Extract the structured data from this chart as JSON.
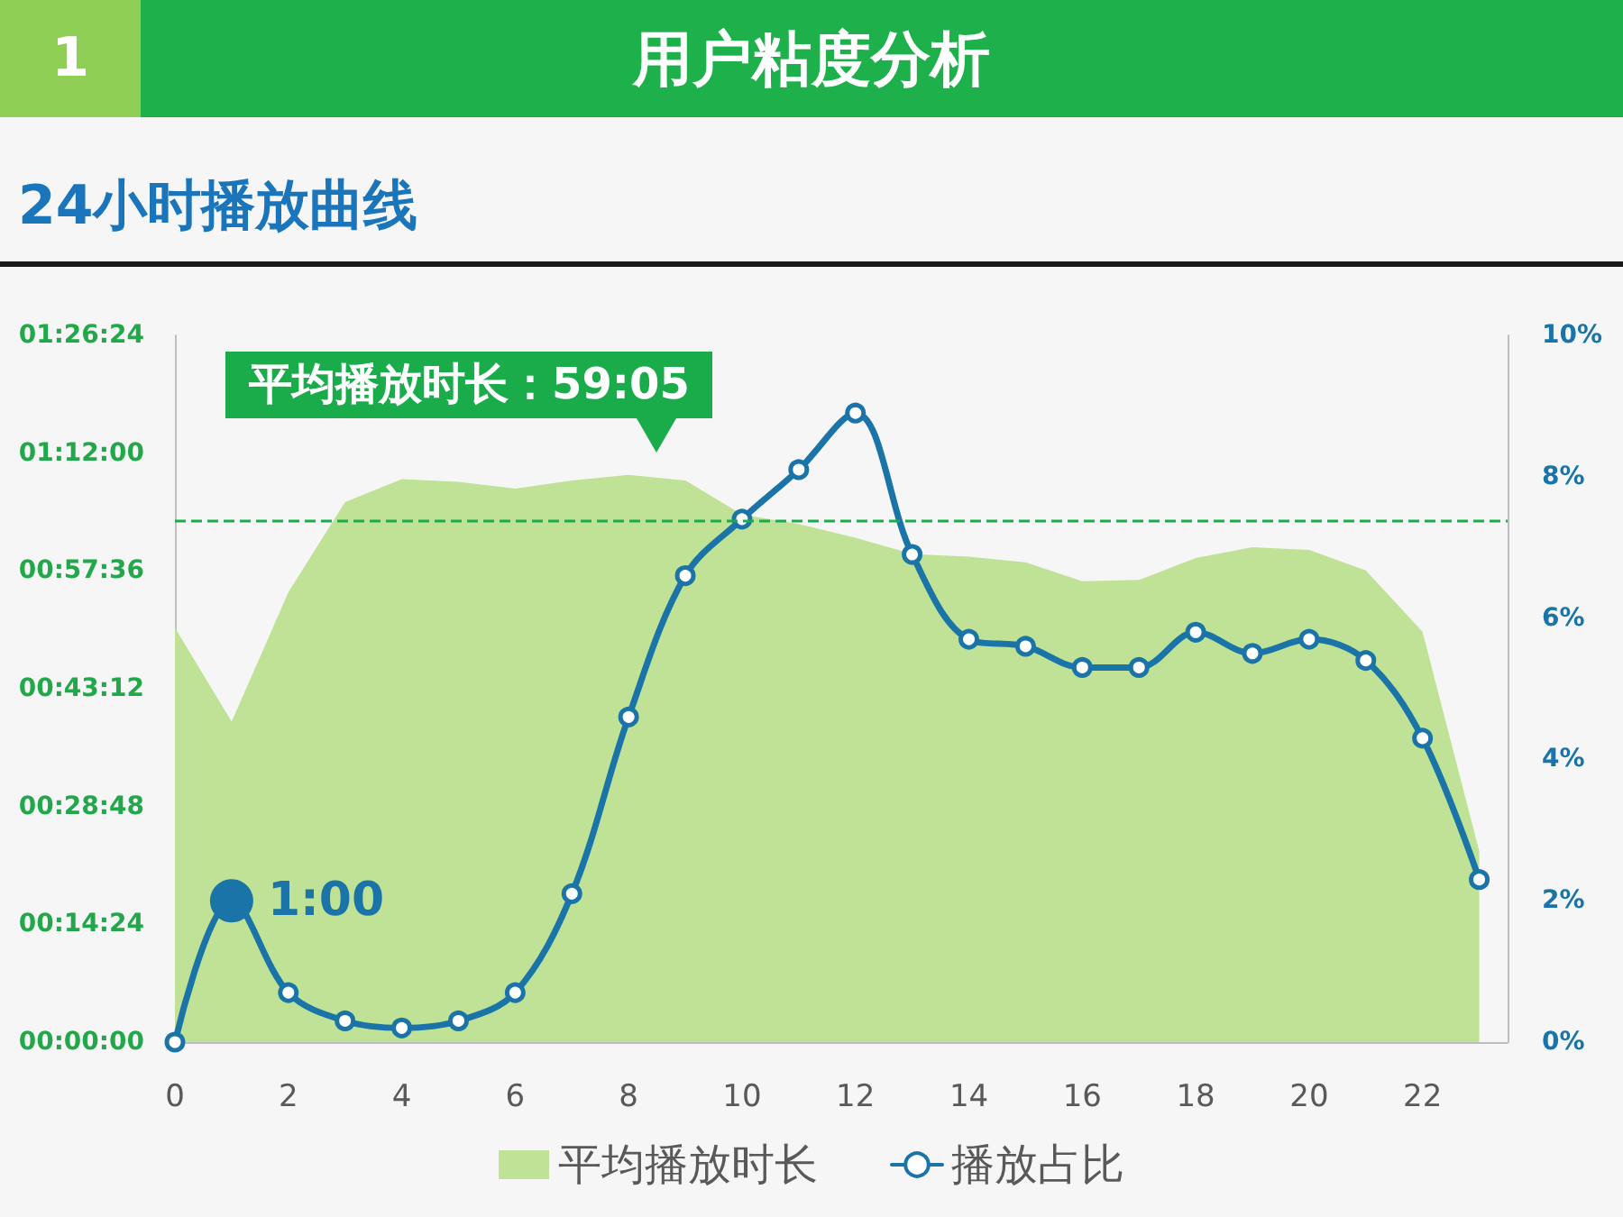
{
  "chart_data": {
    "type": "line",
    "title": "用户粘度分析",
    "subtitle": "24小时播放曲线",
    "annotations": [
      "1",
      "平均播放时长：59:05",
      {
        "text": "1:00",
        "x": 1,
        "y": 2.0
      }
    ],
    "x": [
      0,
      1,
      2,
      3,
      4,
      5,
      6,
      7,
      8,
      9,
      10,
      11,
      12,
      13,
      14,
      15,
      16,
      17,
      18,
      19,
      20,
      21,
      22,
      23
    ],
    "xlim": [
      0,
      23.5
    ],
    "xticks": [
      0,
      2,
      4,
      6,
      8,
      10,
      12,
      14,
      16,
      18,
      20,
      22
    ],
    "ylim": [
      0,
      5184
    ],
    "yticks": [
      {
        "value": 0,
        "label": "00:00:00"
      },
      {
        "value": 864,
        "label": "00:14:24"
      },
      {
        "value": 1728,
        "label": "00:28:48"
      },
      {
        "value": 2592,
        "label": "00:43:12"
      },
      {
        "value": 3456,
        "label": "00:57:36"
      },
      {
        "value": 4320,
        "label": "01:12:00"
      },
      {
        "value": 5184,
        "label": "01:26:24"
      }
    ],
    "y2lim": [
      0,
      10
    ],
    "y2ticks": [
      {
        "value": 0,
        "label": "0%"
      },
      {
        "value": 2,
        "label": "2%"
      },
      {
        "value": 4,
        "label": "4%"
      },
      {
        "value": 6,
        "label": "6%"
      },
      {
        "value": 8,
        "label": "8%"
      },
      {
        "value": 10,
        "label": "10%"
      }
    ],
    "series": [
      {
        "name": "平均播放时长",
        "type": "area",
        "color": "#c0e296",
        "values": [
          3040,
          2350,
          3300,
          3960,
          4130,
          4110,
          4060,
          4120,
          4160,
          4120,
          3870,
          3800,
          3700,
          3580,
          3560,
          3520,
          3380,
          3390,
          3550,
          3630,
          3610,
          3460,
          3010,
          1400
        ]
      },
      {
        "name": "播放占比",
        "axis": "y2",
        "color": "#1a74a8",
        "marker": "circle",
        "values": [
          0,
          2.0,
          0.7,
          0.3,
          0.2,
          0.3,
          0.7,
          2.1,
          4.6,
          6.6,
          7.4,
          8.1,
          8.9,
          6.9,
          5.7,
          5.6,
          5.3,
          5.3,
          5.8,
          5.5,
          5.7,
          5.4,
          4.3,
          2.3
        ]
      }
    ],
    "ref_lines": [
      {
        "axis": "y",
        "value": 3820,
        "color": "#1aab4b",
        "line_style": "dashed"
      }
    ],
    "legend": "bottom",
    "grid": false
  }
}
